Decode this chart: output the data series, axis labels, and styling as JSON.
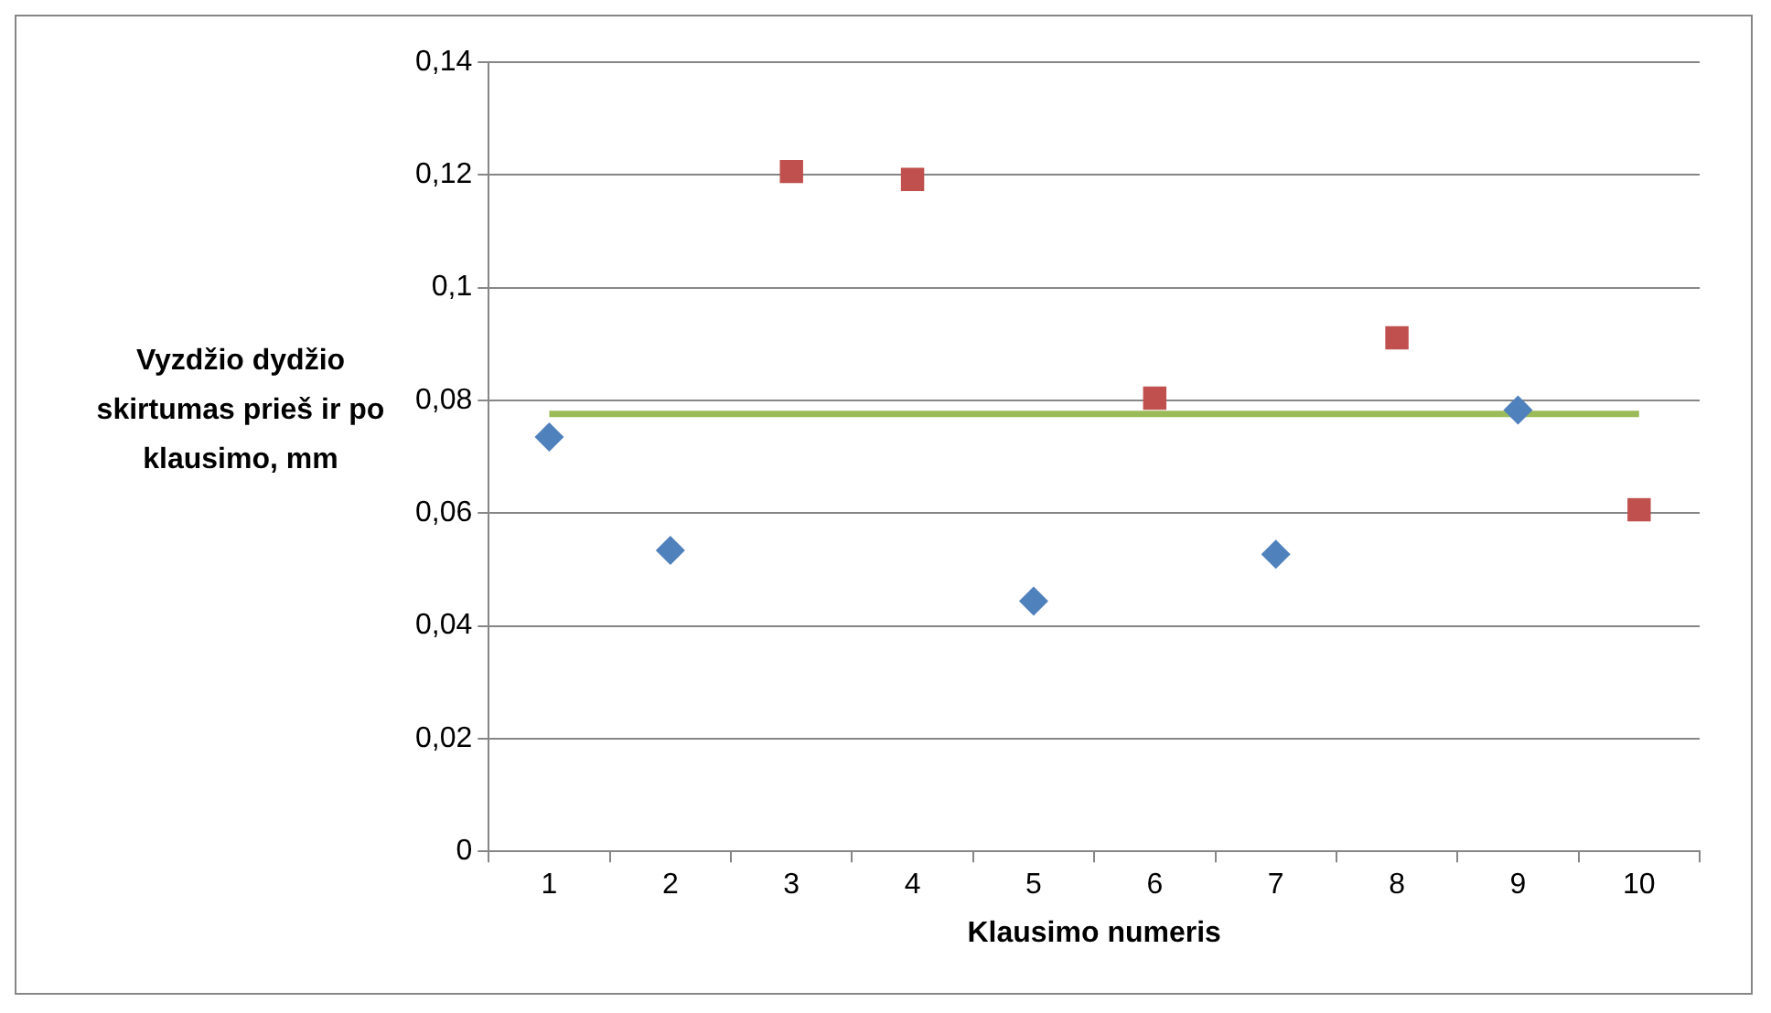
{
  "chart_data": {
    "type": "scatter",
    "xlabel": "Klausimo numeris",
    "ylabel": "Vyzdžio dydžio skirtumas prieš ir po klausimo, mm",
    "categories": [
      "1",
      "2",
      "3",
      "4",
      "5",
      "6",
      "7",
      "8",
      "9",
      "10"
    ],
    "series": [
      {
        "type": "scatter",
        "color": "#4f81bd",
        "marker": "diamond",
        "values": [
          0.0735,
          0.0534,
          null,
          null,
          0.0444,
          null,
          0.0527,
          null,
          0.0783,
          null
        ]
      },
      {
        "type": "scatter",
        "color": "#c0504d",
        "marker": "square",
        "values": [
          null,
          null,
          0.1206,
          0.1192,
          null,
          0.0804,
          null,
          0.0911,
          null,
          0.0606
        ]
      },
      {
        "type": "line",
        "color": "#9bbb59",
        "marker": "none",
        "values": [
          0.0776,
          0.0776,
          0.0776,
          0.0776,
          0.0776,
          0.0776,
          0.0776,
          0.0776,
          0.0776,
          0.0776
        ]
      }
    ],
    "ylim": [
      0,
      0.14
    ],
    "yticks": [
      0,
      {
        "value": 0.02,
        "label": "0,02"
      },
      {
        "value": 0.04,
        "label": "0,04"
      },
      {
        "value": 0.06,
        "label": "0,06"
      },
      {
        "value": 0.08,
        "label": "0,08"
      },
      {
        "value": 0.1,
        "label": "0,1"
      },
      {
        "value": 0.12,
        "label": "0,12"
      },
      {
        "value": 0.14,
        "label": "0,14"
      }
    ],
    "grid": "y",
    "legend": false
  }
}
